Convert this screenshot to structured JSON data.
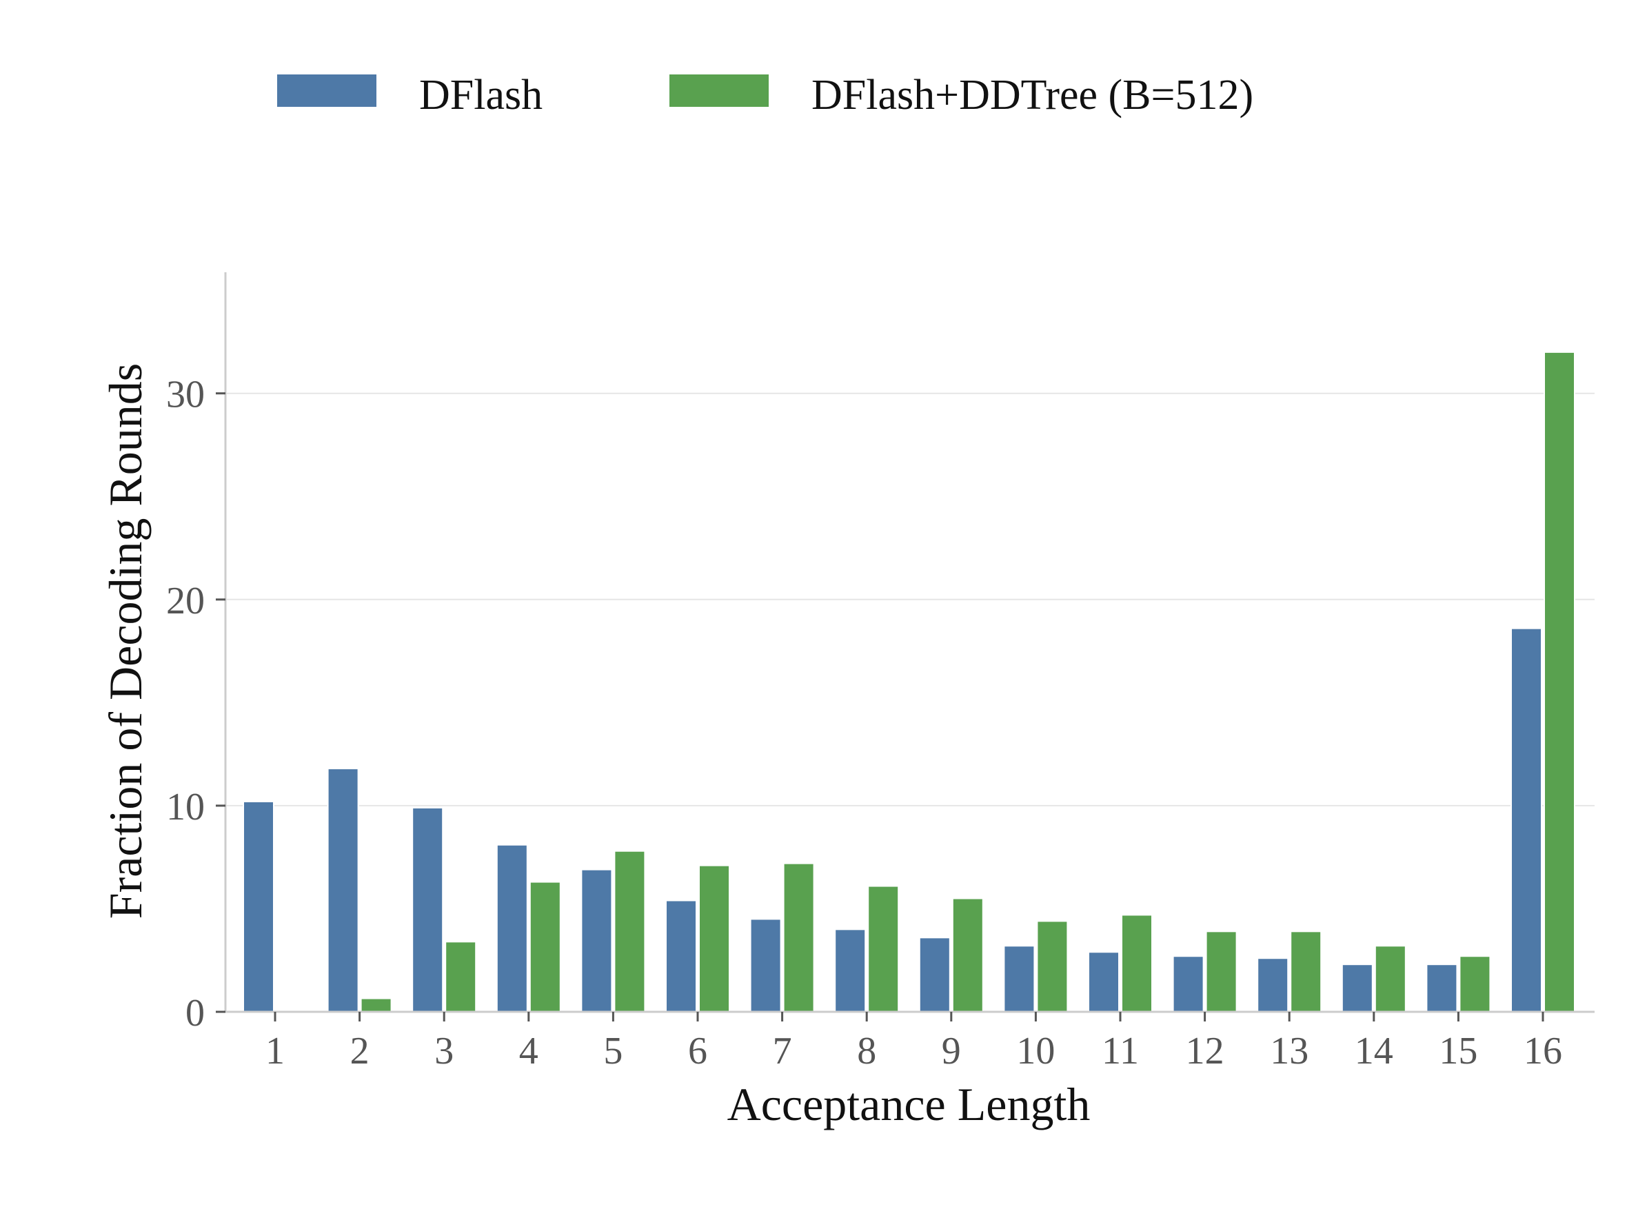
{
  "chart_data": {
    "type": "bar",
    "title": "",
    "xlabel": "Acceptance Length",
    "ylabel": "Fraction of Decoding Rounds",
    "categories": [
      "1",
      "2",
      "3",
      "4",
      "5",
      "6",
      "7",
      "8",
      "9",
      "10",
      "11",
      "12",
      "13",
      "14",
      "15",
      "16"
    ],
    "ylim": [
      0,
      36
    ],
    "yticks": [
      "0",
      "10",
      "20",
      "30"
    ],
    "grid": "horizontal",
    "legend_position": "top",
    "series": [
      {
        "name": "DFlash",
        "color": "#4e79a7",
        "values": [
          10.2,
          11.8,
          9.9,
          8.1,
          6.9,
          5.4,
          4.5,
          4.0,
          3.6,
          3.2,
          2.9,
          2.7,
          2.6,
          2.3,
          2.3,
          18.6
        ]
      },
      {
        "name": "DFlash+DDTree (B=512)",
        "color": "#59a14f",
        "values": [
          0.0,
          0.65,
          3.4,
          6.3,
          7.8,
          7.1,
          7.2,
          6.1,
          5.5,
          4.4,
          4.7,
          3.9,
          3.9,
          3.2,
          2.7,
          32.0
        ]
      }
    ]
  }
}
